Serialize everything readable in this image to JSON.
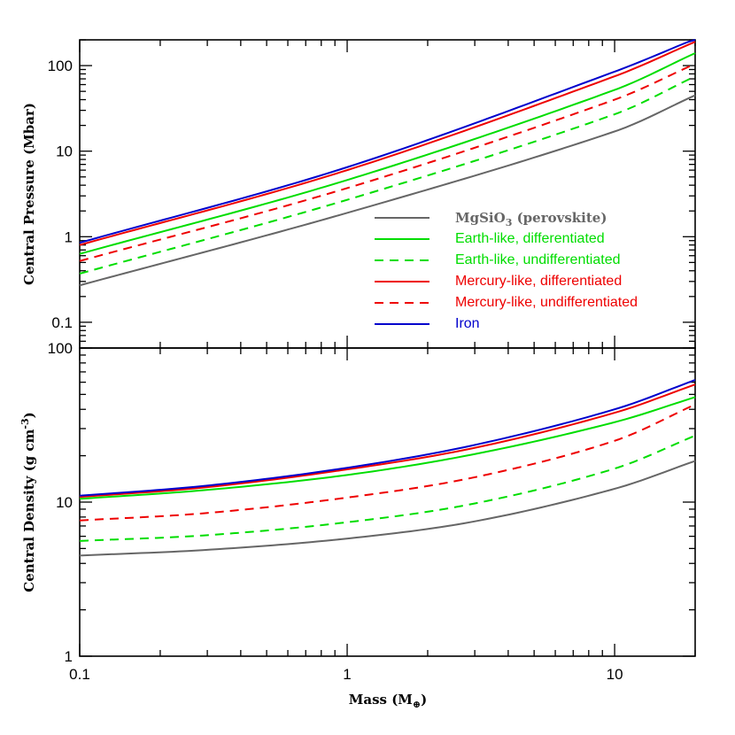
{
  "chart_data": [
    {
      "type": "line",
      "panel": "top",
      "ylabel": "Central Pressure (Mbar)",
      "xlabel": "",
      "xscale": "log",
      "yscale": "log",
      "xlim": [
        0.1,
        20
      ],
      "ylim": [
        0.05,
        200
      ],
      "y_tick_labels": [
        "0.1",
        "1",
        "10",
        "100"
      ],
      "y_tick_values": [
        0.1,
        1,
        10,
        100
      ],
      "series": [
        {
          "name": "MgSiO3 (perovskite)",
          "color": "#666666",
          "dash": "solid",
          "x": [
            0.1,
            1,
            10,
            20
          ],
          "y": [
            0.27,
            1.9,
            17,
            45
          ]
        },
        {
          "name": "Earth-like, differentiated",
          "color": "#00dd00",
          "dash": "solid",
          "x": [
            0.1,
            1,
            10,
            20
          ],
          "y": [
            0.63,
            4.6,
            52,
            140
          ]
        },
        {
          "name": "Earth-like, undifferentiated",
          "color": "#00dd00",
          "dash": "dashed",
          "x": [
            0.1,
            1,
            10,
            20
          ],
          "y": [
            0.37,
            2.7,
            27,
            75
          ]
        },
        {
          "name": "Mercury-like, differentiated",
          "color": "#ee0000",
          "dash": "solid",
          "x": [
            0.1,
            1,
            10,
            20
          ],
          "y": [
            0.8,
            6.0,
            75,
            190
          ]
        },
        {
          "name": "Mercury-like, undifferentiated",
          "color": "#ee0000",
          "dash": "dashed",
          "x": [
            0.1,
            1,
            10,
            20
          ],
          "y": [
            0.52,
            3.7,
            40,
            105
          ]
        },
        {
          "name": "Iron",
          "color": "#0000cc",
          "dash": "solid",
          "x": [
            0.1,
            1,
            10,
            20
          ],
          "y": [
            0.85,
            6.5,
            85,
            205
          ]
        }
      ],
      "legend": {
        "placement": "lower-right",
        "entries": [
          {
            "formula_main": "MgSiO",
            "formula_sub": "3",
            "formula_tail": " (perovskite)"
          },
          {
            "text": "Earth-like, differentiated"
          },
          {
            "text": "Earth-like, undifferentiated"
          },
          {
            "text": "Mercury-like, differentiated"
          },
          {
            "text": "Mercury-like, undifferentiated"
          },
          {
            "text": "Iron"
          }
        ]
      }
    },
    {
      "type": "line",
      "panel": "bottom",
      "ylabel_main": "Central Density (g cm",
      "ylabel_sup": "-3",
      "ylabel_tail": ")",
      "xlabel_main": "Mass (M",
      "xlabel_sub": "⊕",
      "xlabel_tail": ")",
      "xscale": "log",
      "yscale": "log",
      "xlim": [
        0.1,
        20
      ],
      "ylim": [
        1,
        100
      ],
      "x_tick_labels": [
        "0.1",
        "1",
        "10"
      ],
      "x_tick_values": [
        0.1,
        1,
        10
      ],
      "y_tick_labels": [
        "1",
        "10",
        "100"
      ],
      "y_tick_values": [
        1,
        10,
        100
      ],
      "series": [
        {
          "name": "MgSiO3 (perovskite)",
          "color": "#666666",
          "dash": "solid",
          "x": [
            0.1,
            0.3,
            1,
            3,
            10,
            20
          ],
          "y": [
            4.5,
            4.9,
            5.8,
            7.5,
            12.2,
            18.5
          ]
        },
        {
          "name": "Earth-like, differentiated",
          "color": "#00dd00",
          "dash": "solid",
          "x": [
            0.1,
            0.3,
            1,
            3,
            10,
            20
          ],
          "y": [
            10.5,
            12.0,
            15.0,
            20.5,
            33.0,
            48.0
          ]
        },
        {
          "name": "Earth-like, undifferentiated",
          "color": "#00dd00",
          "dash": "dashed",
          "x": [
            0.1,
            0.3,
            1,
            3,
            10,
            20
          ],
          "y": [
            5.6,
            6.1,
            7.4,
            9.8,
            16.5,
            27.0
          ]
        },
        {
          "name": "Mercury-like, differentiated",
          "color": "#ee0000",
          "dash": "solid",
          "x": [
            0.1,
            0.3,
            1,
            3,
            10,
            20
          ],
          "y": [
            10.8,
            12.5,
            16.3,
            22.5,
            38.0,
            58.0
          ]
        },
        {
          "name": "Mercury-like, undifferentiated",
          "color": "#ee0000",
          "dash": "dashed",
          "x": [
            0.1,
            0.3,
            1,
            3,
            10,
            20
          ],
          "y": [
            7.6,
            8.5,
            10.7,
            14.5,
            25.0,
            43.0
          ]
        },
        {
          "name": "Iron",
          "color": "#0000cc",
          "dash": "solid",
          "x": [
            0.1,
            0.3,
            1,
            3,
            10,
            20
          ],
          "y": [
            11.0,
            12.8,
            16.7,
            23.5,
            40.0,
            62.0
          ]
        }
      ]
    }
  ]
}
